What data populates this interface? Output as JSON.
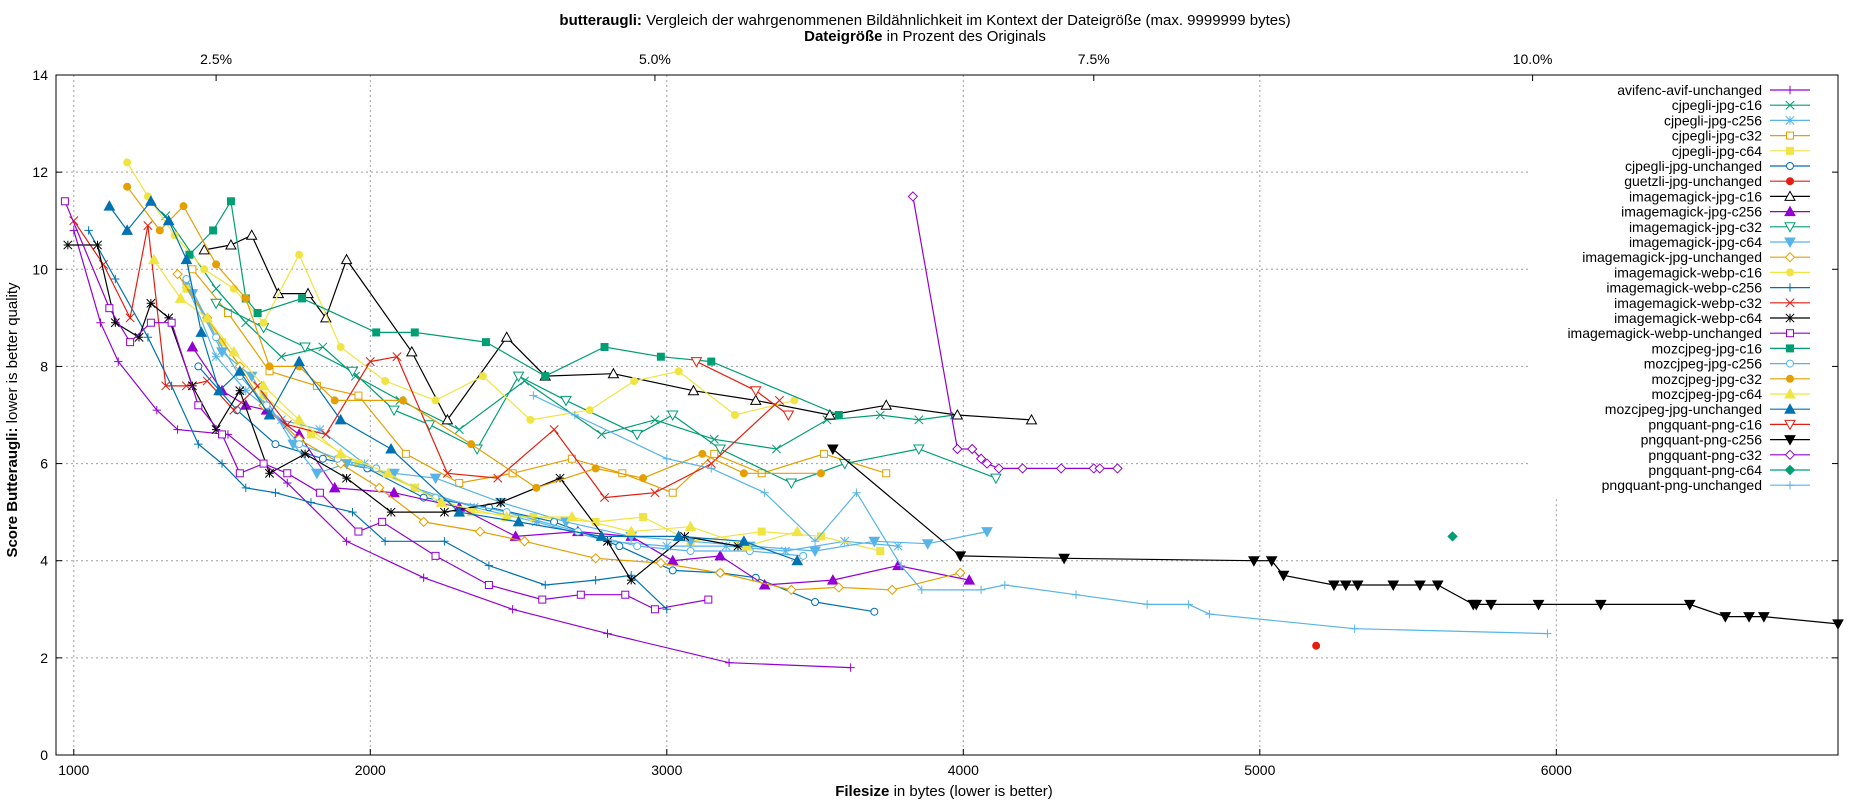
{
  "chart_data": {
    "type": "line",
    "title_bold": "butteraugli:",
    "title_rest": " Vergleich der wahrgenommenen Bildähnlichkeit im Kontext der Dateigröße (max. 9999999 bytes)",
    "subtitle_bold": "Dateigröße",
    "subtitle_rest": " in Prozent des Originals",
    "xlabel_bold": "Filesize",
    "xlabel_rest": " in bytes (lower is better)",
    "ylabel_bold": "Score Butteraugli:",
    "ylabel_rest": " lower is better quality",
    "xlim": [
      940,
      6950
    ],
    "ylim": [
      0,
      14
    ],
    "x_ticks": [
      1000,
      2000,
      3000,
      4000,
      5000,
      6000
    ],
    "y_ticks": [
      0,
      2,
      4,
      6,
      8,
      10,
      12,
      14
    ],
    "x2_ticks": [
      {
        "label": "2.5%",
        "x": 1480
      },
      {
        "label": "5.0%",
        "x": 2960
      },
      {
        "label": "7.5%",
        "x": 4440
      },
      {
        "label": "10.0%",
        "x": 5920
      }
    ],
    "grid": true,
    "legend_position": "top-right",
    "series": [
      {
        "name": "avifenc-avif-unchanged",
        "color": "#9400d3",
        "marker": "plus",
        "x": [
          1000,
          1090,
          1150,
          1280,
          1350,
          1520,
          1720,
          1920,
          2180,
          2480,
          2800,
          3210,
          3620
        ],
        "y": [
          10.8,
          8.9,
          8.1,
          7.1,
          6.7,
          6.6,
          5.6,
          4.4,
          3.65,
          3.0,
          2.5,
          1.9,
          1.8
        ]
      },
      {
        "name": "cjpegli-jpg-c16",
        "color": "#009e73",
        "marker": "x",
        "x": [
          1310,
          1480,
          1580,
          1700,
          1840,
          1950,
          2100,
          2300,
          2520,
          2780,
          2960,
          3160,
          3370,
          3540,
          3720,
          3850,
          3970
        ],
        "y": [
          11.1,
          9.6,
          8.9,
          8.2,
          8.4,
          7.8,
          7.3,
          6.7,
          7.7,
          6.6,
          6.9,
          6.5,
          6.3,
          6.9,
          7.0,
          6.9,
          7.0
        ]
      },
      {
        "name": "cjpegli-jpg-c256",
        "color": "#56b4e9",
        "marker": "asterisk",
        "x": [
          1380,
          1480,
          1580,
          1700,
          1830,
          1980,
          2150,
          2350,
          2560,
          2800,
          3000,
          3200,
          3400,
          3600,
          3780
        ],
        "y": [
          9.7,
          8.2,
          7.5,
          6.9,
          6.7,
          6.0,
          5.5,
          5.1,
          4.8,
          4.4,
          4.3,
          4.3,
          4.2,
          4.4,
          4.3
        ]
      },
      {
        "name": "cjpegli-jpg-c32",
        "color": "#e69f00",
        "marker": "square-open",
        "x": [
          1400,
          1520,
          1660,
          1820,
          1960,
          2120,
          2300,
          2480,
          2680,
          2850,
          3020,
          3160,
          3320,
          3530,
          3740
        ],
        "y": [
          10.0,
          9.1,
          7.9,
          7.6,
          7.4,
          6.2,
          5.6,
          5.8,
          6.1,
          5.8,
          5.4,
          6.2,
          5.8,
          6.2,
          5.8
        ]
      },
      {
        "name": "cjpegli-jpg-c64",
        "color": "#f0e442",
        "marker": "square-filled",
        "x": [
          1380,
          1500,
          1640,
          1800,
          1960,
          2150,
          2340,
          2550,
          2760,
          2920,
          3080,
          3320,
          3520,
          3720
        ],
        "y": [
          9.6,
          8.5,
          7.4,
          6.6,
          6.0,
          5.5,
          5.0,
          4.9,
          4.8,
          4.9,
          4.4,
          4.6,
          4.5,
          4.2
        ]
      },
      {
        "name": "cjpegli-jpg-unchanged",
        "color": "#0072b2",
        "marker": "circle-open",
        "x": [
          1420,
          1550,
          1680,
          1840,
          1990,
          2180,
          2400,
          2620,
          2840,
          3020,
          3180,
          3300,
          3500,
          3700
        ],
        "y": [
          8.0,
          7.1,
          6.4,
          6.1,
          5.9,
          5.3,
          5.1,
          4.8,
          4.3,
          3.8,
          3.75,
          3.65,
          3.15,
          2.95
        ]
      },
      {
        "name": "guetzli-jpg-unchanged",
        "color": "#e51e10",
        "marker": "dot",
        "x": [
          5190
        ],
        "y": [
          2.25
        ]
      },
      {
        "name": "imagemagick-jpg-c16",
        "color": "#000000",
        "marker": "triangle-open",
        "x": [
          1440,
          1530,
          1600,
          1690,
          1790,
          1850,
          1920,
          2140,
          2260,
          2460,
          2590,
          2820,
          3090,
          3300,
          3550,
          3740,
          3980,
          4230
        ],
        "y": [
          10.4,
          10.5,
          10.7,
          9.5,
          9.5,
          9.0,
          10.2,
          8.3,
          6.9,
          8.6,
          7.8,
          7.85,
          7.5,
          7.3,
          7.0,
          7.2,
          7.0,
          6.9
        ]
      },
      {
        "name": "imagemagick-jpg-c256",
        "color": "#9400d3",
        "marker": "triangle-filled",
        "x": [
          1400,
          1500,
          1580,
          1650,
          1760,
          1880,
          2080,
          2300,
          2490,
          2700,
          2880,
          3020,
          3180,
          3330,
          3560,
          3780,
          4020
        ],
        "y": [
          8.4,
          7.5,
          7.2,
          7.1,
          6.6,
          5.5,
          5.4,
          5.1,
          4.5,
          4.6,
          4.5,
          4.0,
          4.1,
          3.5,
          3.6,
          3.9,
          3.6
        ]
      },
      {
        "name": "imagemagick-jpg-c32",
        "color": "#009e73",
        "marker": "triangle-down-open",
        "x": [
          1480,
          1640,
          1780,
          1940,
          2080,
          2200,
          2360,
          2500,
          2660,
          2900,
          3020,
          3180,
          3420,
          3600,
          3850,
          4110
        ],
        "y": [
          9.3,
          8.8,
          8.4,
          7.9,
          7.1,
          6.8,
          6.3,
          7.8,
          7.3,
          6.6,
          7.0,
          6.3,
          5.6,
          6.0,
          6.3,
          5.7
        ]
      },
      {
        "name": "imagemagick-jpg-c64",
        "color": "#56b4e9",
        "marker": "triangle-down-filled",
        "x": [
          1400,
          1500,
          1600,
          1740,
          1820,
          1920,
          2080,
          2220,
          2440,
          2660,
          2880,
          3080,
          3280,
          3500,
          3700,
          3880,
          4080
        ],
        "y": [
          9.5,
          8.3,
          7.8,
          6.4,
          5.8,
          6.0,
          5.8,
          5.7,
          5.2,
          4.8,
          4.5,
          4.4,
          4.3,
          4.2,
          4.4,
          4.35,
          4.6
        ]
      },
      {
        "name": "imagemagick-jpg-unchanged",
        "color": "#e69f00",
        "marker": "diamond-open",
        "x": [
          1350,
          1450,
          1560,
          1640,
          1760,
          1900,
          2030,
          2180,
          2370,
          2520,
          2760,
          2980,
          3180,
          3420,
          3580,
          3760,
          3990
        ],
        "y": [
          9.9,
          9.0,
          8.0,
          7.2,
          6.5,
          6.0,
          5.5,
          4.8,
          4.6,
          4.4,
          4.05,
          3.95,
          3.75,
          3.4,
          3.45,
          3.4,
          3.75
        ]
      },
      {
        "name": "imagemagick-webp-c16",
        "color": "#f0e442",
        "marker": "dot",
        "x": [
          1180,
          1250,
          1340,
          1440,
          1540,
          1640,
          1760,
          1900,
          2050,
          2220,
          2380,
          2540,
          2740,
          2890,
          3040,
          3230,
          3430
        ],
        "y": [
          12.2,
          11.5,
          10.7,
          10.0,
          9.6,
          8.9,
          10.3,
          8.4,
          7.7,
          7.3,
          7.8,
          6.9,
          7.1,
          7.7,
          7.9,
          7.0,
          7.3
        ]
      },
      {
        "name": "imagemagick-webp-c256",
        "color": "#0072b2",
        "marker": "plus",
        "x": [
          1050,
          1140,
          1250,
          1330,
          1420,
          1500,
          1580,
          1680,
          1800,
          1940,
          2050,
          2250,
          2400,
          2590,
          2760,
          2880,
          3000
        ],
        "y": [
          10.8,
          9.8,
          8.6,
          7.6,
          6.4,
          6.0,
          5.5,
          5.4,
          5.2,
          5.0,
          4.4,
          4.4,
          3.9,
          3.5,
          3.6,
          3.7,
          3.0
        ]
      },
      {
        "name": "imagemagick-webp-c32",
        "color": "#e51e10",
        "marker": "x",
        "x": [
          1000,
          1100,
          1190,
          1250,
          1310,
          1380,
          1450,
          1540,
          1620,
          1720,
          1850,
          2000,
          2090,
          2260,
          2430,
          2620,
          2790,
          2960,
          3150,
          3380
        ],
        "y": [
          11.0,
          10.1,
          9.0,
          10.9,
          7.6,
          7.6,
          7.7,
          7.1,
          7.6,
          6.8,
          6.6,
          8.1,
          8.2,
          5.8,
          5.7,
          6.7,
          5.3,
          5.4,
          6.0,
          7.3
        ]
      },
      {
        "name": "imagemagick-webp-c64",
        "color": "#000000",
        "marker": "asterisk",
        "x": [
          980,
          1080,
          1140,
          1220,
          1260,
          1320,
          1400,
          1480,
          1560,
          1660,
          1780,
          1920,
          2070,
          2250,
          2440,
          2640,
          2800,
          2880,
          3060,
          3240
        ],
        "y": [
          10.5,
          10.5,
          8.9,
          8.6,
          9.3,
          9.0,
          7.6,
          6.7,
          7.5,
          5.8,
          6.2,
          5.7,
          5.0,
          5.0,
          5.2,
          5.7,
          4.4,
          3.6,
          4.5,
          4.3
        ]
      },
      {
        "name": "imagemagick-webp-unchanged",
        "color": "#9400d3",
        "marker": "square-open",
        "x": [
          970,
          1120,
          1190,
          1260,
          1330,
          1420,
          1500,
          1560,
          1640,
          1720,
          1830,
          1960,
          2040,
          2220,
          2400,
          2580,
          2710,
          2860,
          2960,
          3140
        ],
        "y": [
          11.4,
          9.2,
          8.5,
          8.9,
          8.9,
          7.2,
          6.6,
          5.8,
          6.0,
          5.8,
          5.4,
          4.6,
          4.8,
          4.1,
          3.5,
          3.2,
          3.3,
          3.3,
          3.0,
          3.2
        ]
      },
      {
        "name": "mozcjpeg-jpg-c16",
        "color": "#009e73",
        "marker": "square-filled",
        "x": [
          1390,
          1470,
          1530,
          1580,
          1620,
          1770,
          2020,
          2150,
          2390,
          2590,
          2790,
          2980,
          3150,
          3580
        ],
        "y": [
          10.3,
          10.8,
          11.4,
          9.4,
          9.1,
          9.4,
          8.7,
          8.7,
          8.5,
          7.8,
          8.4,
          8.2,
          8.1,
          7.0
        ]
      },
      {
        "name": "mozcjpeg-jpg-c256",
        "color": "#56b4e9",
        "marker": "circle-open",
        "x": [
          1380,
          1480,
          1560,
          1650,
          1760,
          1890,
          2020,
          2220,
          2460,
          2700,
          2900,
          3080,
          3280,
          3460
        ],
        "y": [
          9.8,
          8.6,
          7.8,
          7.2,
          6.4,
          6.1,
          5.9,
          5.3,
          5.0,
          4.6,
          4.3,
          4.2,
          4.2,
          4.1
        ]
      },
      {
        "name": "mozcjpeg-jpg-c32",
        "color": "#e69f00",
        "marker": "dot",
        "x": [
          1180,
          1290,
          1370,
          1480,
          1580,
          1660,
          1760,
          1880,
          2110,
          2340,
          2560,
          2760,
          2920,
          3120,
          3260,
          3520
        ],
        "y": [
          11.7,
          10.8,
          11.3,
          10.1,
          9.4,
          8.0,
          8.0,
          7.3,
          7.3,
          6.4,
          5.5,
          5.9,
          5.7,
          6.2,
          5.8,
          5.8
        ]
      },
      {
        "name": "mozcjpeg-jpg-c64",
        "color": "#f0e442",
        "marker": "triangle-filled",
        "x": [
          1270,
          1360,
          1450,
          1540,
          1640,
          1760,
          1900,
          2060,
          2240,
          2460,
          2680,
          2880,
          3080,
          3270,
          3440
        ],
        "y": [
          10.2,
          9.4,
          9.0,
          8.3,
          7.6,
          6.9,
          6.2,
          5.8,
          5.2,
          4.9,
          4.9,
          4.6,
          4.7,
          4.3,
          4.6
        ]
      },
      {
        "name": "mozcjpeg-jpg-unchanged",
        "color": "#0072b2",
        "marker": "triangle-filled",
        "x": [
          1120,
          1180,
          1260,
          1320,
          1380,
          1430,
          1490,
          1560,
          1660,
          1760,
          1900,
          2070,
          2300,
          2500,
          2780,
          3040,
          3260,
          3440
        ],
        "y": [
          11.3,
          10.8,
          11.4,
          11.0,
          10.2,
          8.7,
          7.5,
          7.9,
          7.0,
          8.1,
          6.9,
          6.3,
          5.0,
          4.8,
          4.5,
          4.5,
          4.4,
          4.0
        ]
      },
      {
        "name": "pngquant-png-c16",
        "color": "#e51e10",
        "marker": "triangle-down-open",
        "x": [
          3100,
          3300,
          3410
        ],
        "y": [
          8.1,
          7.5,
          7.0
        ]
      },
      {
        "name": "pngquant-png-c256",
        "color": "#000000",
        "marker": "triangle-down-filled",
        "x": [
          3560,
          3990,
          4340,
          4980,
          5040,
          5080,
          5250,
          5290,
          5330,
          5450,
          5540,
          5600,
          5720,
          5730,
          5780,
          5940,
          6150,
          6450,
          6570,
          6650,
          6700,
          6950
        ],
        "y": [
          6.3,
          4.1,
          4.05,
          4.0,
          4.0,
          3.7,
          3.5,
          3.5,
          3.5,
          3.5,
          3.5,
          3.5,
          3.1,
          3.1,
          3.1,
          3.1,
          3.1,
          3.1,
          2.85,
          2.85,
          2.85,
          2.7
        ]
      },
      {
        "name": "pngquant-png-c32",
        "color": "#9400d3",
        "marker": "diamond-open",
        "x": [
          3830,
          3980,
          4030,
          4060,
          4080,
          4120,
          4200,
          4330,
          4440,
          4460,
          4520
        ],
        "y": [
          11.5,
          6.3,
          6.3,
          6.1,
          6.0,
          5.9,
          5.9,
          5.9,
          5.9,
          5.9,
          5.9
        ]
      },
      {
        "name": "pngquant-png-c64",
        "color": "#009e73",
        "marker": "diamond-filled",
        "x": [
          5650
        ],
        "y": [
          4.5
        ]
      },
      {
        "name": "pngquant-png-unchanged",
        "color": "#56b4e9",
        "marker": "plus",
        "x": [
          2550,
          2690,
          3000,
          3150,
          3330,
          3500,
          3640,
          3790,
          3860,
          4060,
          4140,
          4380,
          4620,
          4760,
          4830,
          5320,
          5970
        ],
        "y": [
          7.4,
          7.0,
          6.1,
          5.9,
          5.4,
          4.4,
          5.4,
          3.9,
          3.4,
          3.4,
          3.5,
          3.3,
          3.1,
          3.1,
          2.9,
          2.6,
          2.5
        ]
      }
    ]
  }
}
